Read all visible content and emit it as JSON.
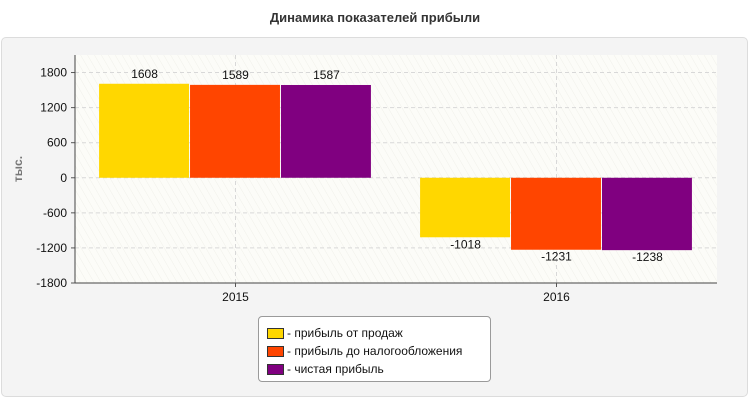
{
  "chart_data": {
    "type": "bar",
    "title": "Динамика показателей прибыли",
    "ylabel": "тыс.",
    "xlabel": "",
    "categories": [
      "2015",
      "2016"
    ],
    "ylim": [
      -1800,
      2100
    ],
    "yticks": [
      -1800,
      -1200,
      -600,
      0,
      600,
      1200,
      1800
    ],
    "grid": true,
    "legend_position": "bottom",
    "series": [
      {
        "name": "- прибыль от продаж",
        "color": "#FFD700",
        "values": [
          1608,
          -1018
        ]
      },
      {
        "name": "- прибыль до налогообложения",
        "color": "#FF4500",
        "values": [
          1589,
          -1231
        ]
      },
      {
        "name": "- чистая прибыль",
        "color": "#800080",
        "values": [
          1587,
          -1238
        ]
      }
    ]
  }
}
